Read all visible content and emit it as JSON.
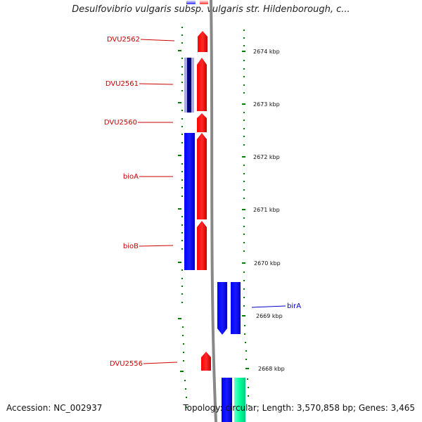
{
  "title": "Desulfovibrio vulgaris subsp. vulgaris str. Hildenborough, c...",
  "footer": {
    "accession": "Accession: NC_002937",
    "summary": "Topology: circular; Length: 3,570,858 bp; Genes: 3,465"
  },
  "scale_labels": [
    "2674 kbp",
    "2673 kbp",
    "2672 kbp",
    "2671 kbp",
    "2670 kbp",
    "2669 kbp",
    "2668 kbp"
  ],
  "genes": [
    {
      "label": "DVU2562",
      "color": "#cc0000"
    },
    {
      "label": "DVU2561",
      "color": "#cc0000"
    },
    {
      "label": "DVU2560",
      "color": "#cc0000"
    },
    {
      "label": "bioA",
      "color": "#cc0000"
    },
    {
      "label": "bioB",
      "color": "#cc0000"
    },
    {
      "label": "birA",
      "color": "#0000cc"
    },
    {
      "label": "DVU2556",
      "color": "#cc0000"
    }
  ],
  "colors": {
    "forward_strand": "#ff0000",
    "reverse_strand": "#0000ff",
    "aux_strand": "#00ff99",
    "ruler_ticks": "#008000",
    "axis": "#888888"
  }
}
